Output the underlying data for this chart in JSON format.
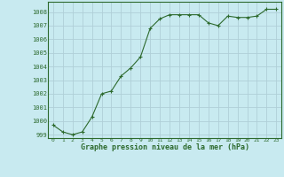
{
  "x": [
    0,
    1,
    2,
    3,
    4,
    5,
    6,
    7,
    8,
    9,
    10,
    11,
    12,
    13,
    14,
    15,
    16,
    17,
    18,
    19,
    20,
    21,
    22,
    23
  ],
  "y": [
    999.7,
    999.2,
    999.0,
    999.2,
    1000.3,
    1002.0,
    1002.2,
    1003.3,
    1003.9,
    1004.7,
    1006.8,
    1007.5,
    1007.8,
    1007.8,
    1007.8,
    1007.8,
    1007.2,
    1007.0,
    1007.7,
    1007.6,
    1007.6,
    1007.7,
    1008.2,
    1008.2
  ],
  "line_color": "#2d6a2d",
  "marker_color": "#2d6a2d",
  "bg_color": "#c8eaf0",
  "grid_color": "#b0cfd8",
  "label_color": "#2d6a2d",
  "xlabel": "Graphe pression niveau de la mer (hPa)",
  "ylim_min": 998.75,
  "ylim_max": 1008.75,
  "xlim_min": -0.5,
  "xlim_max": 23.5,
  "yticks": [
    999,
    1000,
    1001,
    1002,
    1003,
    1004,
    1005,
    1006,
    1007,
    1008
  ],
  "xticks": [
    0,
    1,
    2,
    3,
    4,
    5,
    6,
    7,
    8,
    9,
    10,
    11,
    12,
    13,
    14,
    15,
    16,
    17,
    18,
    19,
    20,
    21,
    22,
    23
  ]
}
